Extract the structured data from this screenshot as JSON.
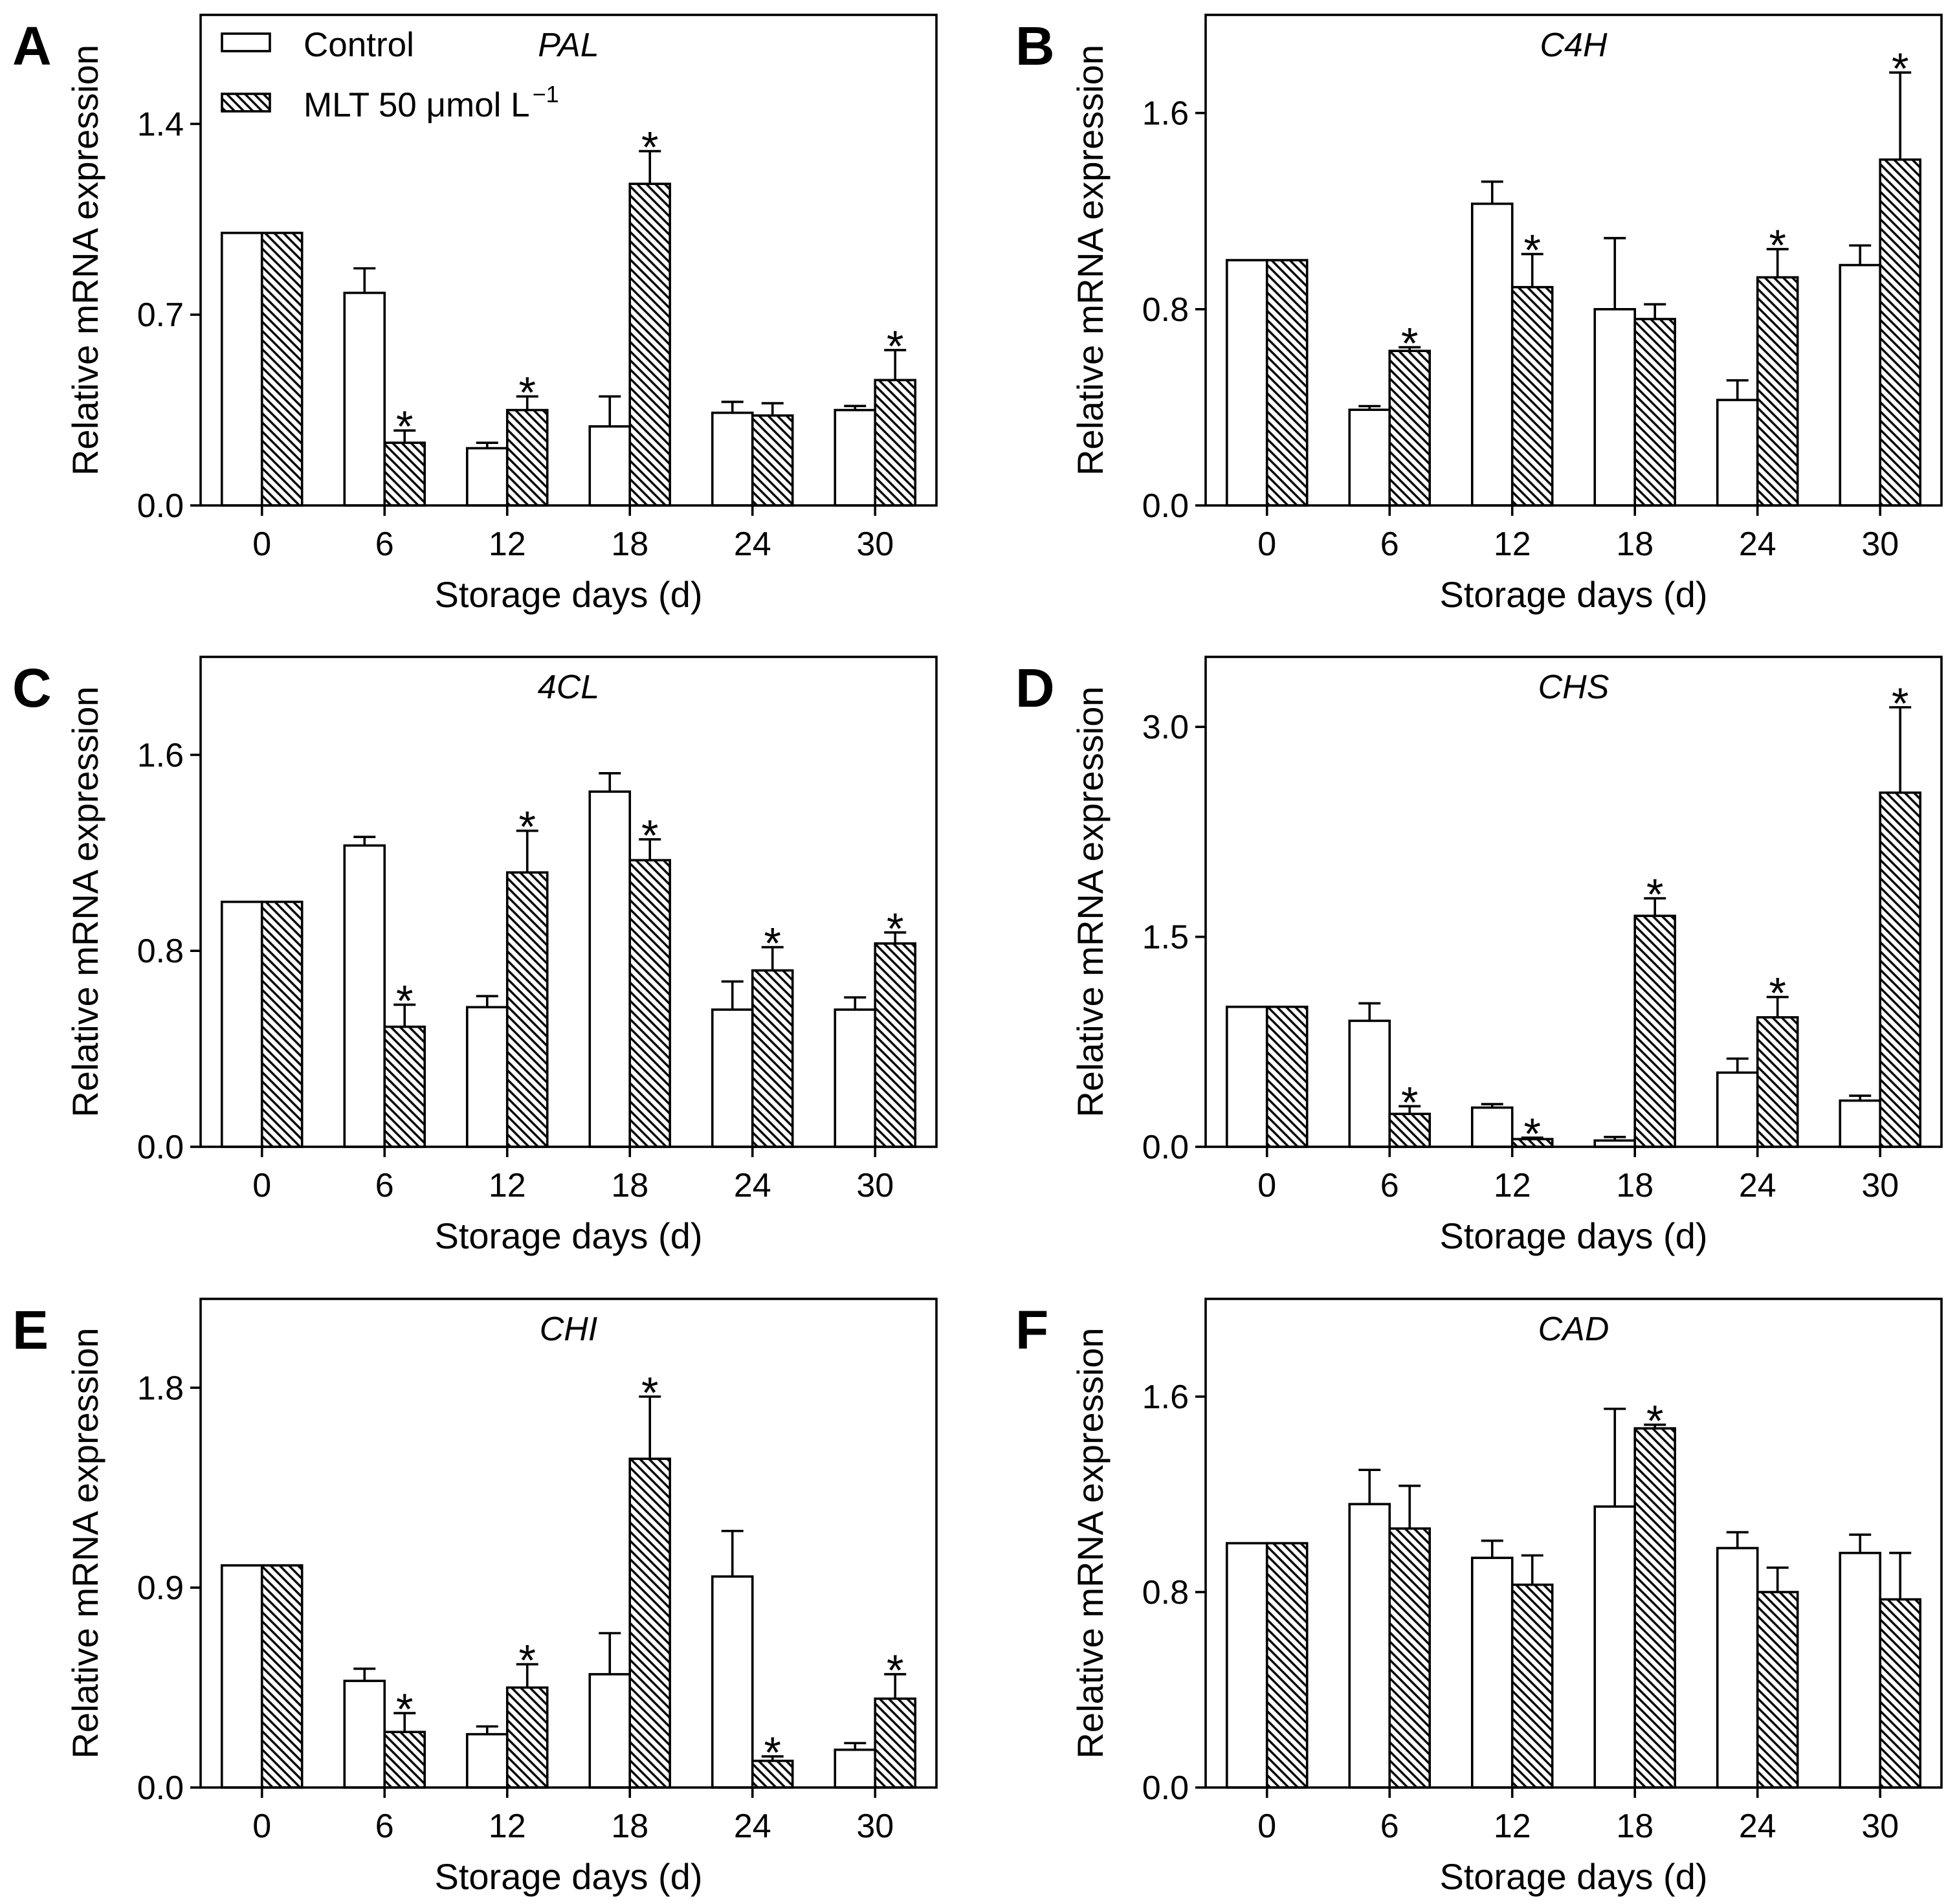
{
  "chart_data": [
    {
      "panel": "A",
      "type": "bar",
      "title": "PAL",
      "categories": [
        "0",
        "6",
        "12",
        "18",
        "24",
        "30"
      ],
      "xlabel": "Storage days (d)",
      "ylabel": "Relative mRNA expression",
      "ylim": [
        0,
        1.8
      ],
      "yticks": [
        0.0,
        0.7,
        1.4
      ],
      "ytick_labels": [
        "0.0",
        "0.7",
        "1.4"
      ],
      "series": [
        {
          "values": [
            1.0,
            0.78,
            0.21,
            0.29,
            0.34,
            0.35
          ],
          "error": [
            0,
            0.09,
            0.02,
            0.11,
            0.04,
            0.015
          ]
        },
        {
          "values": [
            1.0,
            0.23,
            0.35,
            1.18,
            0.33,
            0.46
          ],
          "error": [
            0,
            0.045,
            0.05,
            0.12,
            0.045,
            0.11
          ],
          "significant": [
            false,
            true,
            true,
            true,
            false,
            true
          ]
        }
      ],
      "legend": {
        "position": "top-left",
        "items": [
          {
            "label": "Control"
          },
          {
            "label": "MLT 50 μmol L",
            "superscript": "−1"
          }
        ]
      }
    },
    {
      "panel": "B",
      "type": "bar",
      "title": "C4H",
      "categories": [
        "0",
        "6",
        "12",
        "18",
        "24",
        "30"
      ],
      "xlabel": "Storage days (d)",
      "ylabel": "Relative mRNA expression",
      "ylim": [
        0,
        2.0
      ],
      "yticks": [
        0.0,
        0.8,
        1.6
      ],
      "ytick_labels": [
        "0.0",
        "0.8",
        "1.6"
      ],
      "series": [
        {
          "values": [
            1.0,
            0.39,
            1.23,
            0.8,
            0.43,
            0.98
          ],
          "error": [
            0,
            0.015,
            0.09,
            0.29,
            0.08,
            0.08
          ]
        },
        {
          "values": [
            1.0,
            0.63,
            0.89,
            0.76,
            0.93,
            1.41
          ],
          "error": [
            0,
            0.015,
            0.135,
            0.06,
            0.115,
            0.355
          ],
          "significant": [
            false,
            true,
            true,
            false,
            true,
            true
          ]
        }
      ]
    },
    {
      "panel": "C",
      "type": "bar",
      "title": "4CL",
      "categories": [
        "0",
        "6",
        "12",
        "18",
        "24",
        "30"
      ],
      "xlabel": "Storage days (d)",
      "ylabel": "Relative mRNA expression",
      "ylim": [
        0,
        2.0
      ],
      "yticks": [
        0.0,
        0.8,
        1.6
      ],
      "ytick_labels": [
        "0.0",
        "0.8",
        "1.6"
      ],
      "series": [
        {
          "values": [
            1.0,
            1.23,
            0.57,
            1.45,
            0.56,
            0.56
          ],
          "error": [
            0,
            0.035,
            0.045,
            0.075,
            0.115,
            0.05
          ]
        },
        {
          "values": [
            1.0,
            0.49,
            1.12,
            1.17,
            0.72,
            0.83
          ],
          "error": [
            0,
            0.09,
            0.17,
            0.085,
            0.095,
            0.045
          ],
          "significant": [
            false,
            true,
            true,
            true,
            true,
            true
          ]
        }
      ]
    },
    {
      "panel": "D",
      "type": "bar",
      "title": "CHS",
      "categories": [
        "0",
        "6",
        "12",
        "18",
        "24",
        "30"
      ],
      "xlabel": "Storage days (d)",
      "ylabel": "Relative mRNA expression",
      "ylim": [
        0,
        3.5
      ],
      "yticks": [
        0.0,
        1.5,
        3.0
      ],
      "ytick_labels": [
        "0.0",
        "1.5",
        "3.0"
      ],
      "series": [
        {
          "values": [
            1.0,
            0.9,
            0.28,
            0.045,
            0.53,
            0.33
          ],
          "error": [
            0,
            0.125,
            0.025,
            0.025,
            0.1,
            0.035
          ]
        },
        {
          "values": [
            1.0,
            0.235,
            0.055,
            1.65,
            0.925,
            2.53
          ],
          "error": [
            0,
            0.055,
            0.01,
            0.125,
            0.145,
            0.61
          ],
          "significant": [
            false,
            true,
            true,
            true,
            true,
            true
          ]
        }
      ]
    },
    {
      "panel": "E",
      "type": "bar",
      "title": "CHI",
      "categories": [
        "0",
        "6",
        "12",
        "18",
        "24",
        "30"
      ],
      "xlabel": "Storage days (d)",
      "ylabel": "Relative mRNA expression",
      "ylim": [
        0,
        2.2
      ],
      "yticks": [
        0.0,
        0.9,
        1.8
      ],
      "ytick_labels": [
        "0.0",
        "0.9",
        "1.8"
      ],
      "series": [
        {
          "values": [
            1.0,
            0.48,
            0.24,
            0.51,
            0.95,
            0.17
          ],
          "error": [
            0,
            0.055,
            0.035,
            0.185,
            0.205,
            0.03
          ]
        },
        {
          "values": [
            1.0,
            0.25,
            0.45,
            1.48,
            0.12,
            0.4
          ],
          "error": [
            0,
            0.085,
            0.105,
            0.28,
            0.02,
            0.11
          ],
          "significant": [
            false,
            true,
            true,
            true,
            true,
            true
          ]
        }
      ]
    },
    {
      "panel": "F",
      "type": "bar",
      "title": "CAD",
      "categories": [
        "0",
        "6",
        "12",
        "18",
        "24",
        "30"
      ],
      "xlabel": "Storage days (d)",
      "ylabel": "Relative mRNA expression",
      "ylim": [
        0,
        2.0
      ],
      "yticks": [
        0.0,
        0.8,
        1.6
      ],
      "ytick_labels": [
        "0.0",
        "0.8",
        "1.6"
      ],
      "series": [
        {
          "values": [
            1.0,
            1.16,
            0.94,
            1.15,
            0.98,
            0.96
          ],
          "error": [
            0,
            0.14,
            0.07,
            0.4,
            0.065,
            0.075
          ]
        },
        {
          "values": [
            1.0,
            1.06,
            0.83,
            1.47,
            0.8,
            0.77
          ],
          "error": [
            0,
            0.175,
            0.12,
            0.015,
            0.1,
            0.19
          ],
          "significant": [
            false,
            false,
            false,
            true,
            false,
            false
          ]
        }
      ]
    }
  ],
  "significance_marker": "*",
  "colors": {
    "stroke": "#000000",
    "fill": "#ffffff"
  }
}
